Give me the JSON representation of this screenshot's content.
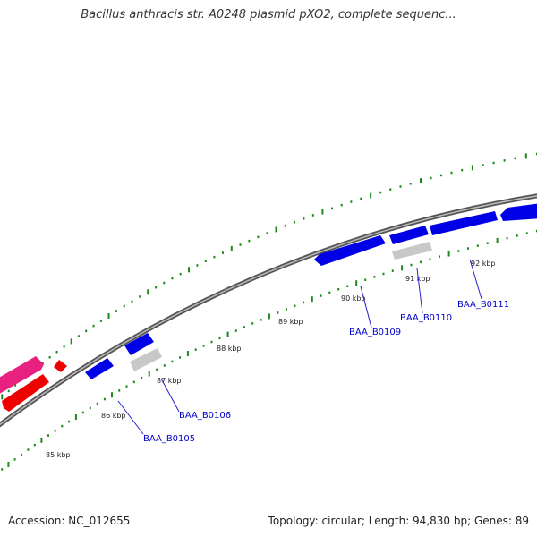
{
  "title": "Bacillus anthracis str. A0248 plasmid pXO2, complete sequenc...",
  "footer": {
    "accession": "Accession: NC_012655",
    "summary": "Topology: circular; Length: 94,830 bp; Genes: 89"
  },
  "colors": {
    "backbone": "#808080",
    "gc_ticks": "#1a8a1a",
    "gene_blue": "#0000e6",
    "gene_red": "#ee0000",
    "gene_pink": "#e8207f",
    "gene_gray": "#c8c8c8",
    "label_text": "#0000cc",
    "leader_line": "#2222cc"
  },
  "kbp_labels": [
    "85 kbp",
    "86 kbp",
    "87 kbp",
    "88 kbp",
    "89 kbp",
    "90 kbp",
    "91 kbp",
    "92 kbp"
  ],
  "gene_labels": [
    "BAA_B0105",
    "BAA_B0106",
    "BAA_B0109",
    "BAA_B0110",
    "BAA_B0111"
  ]
}
